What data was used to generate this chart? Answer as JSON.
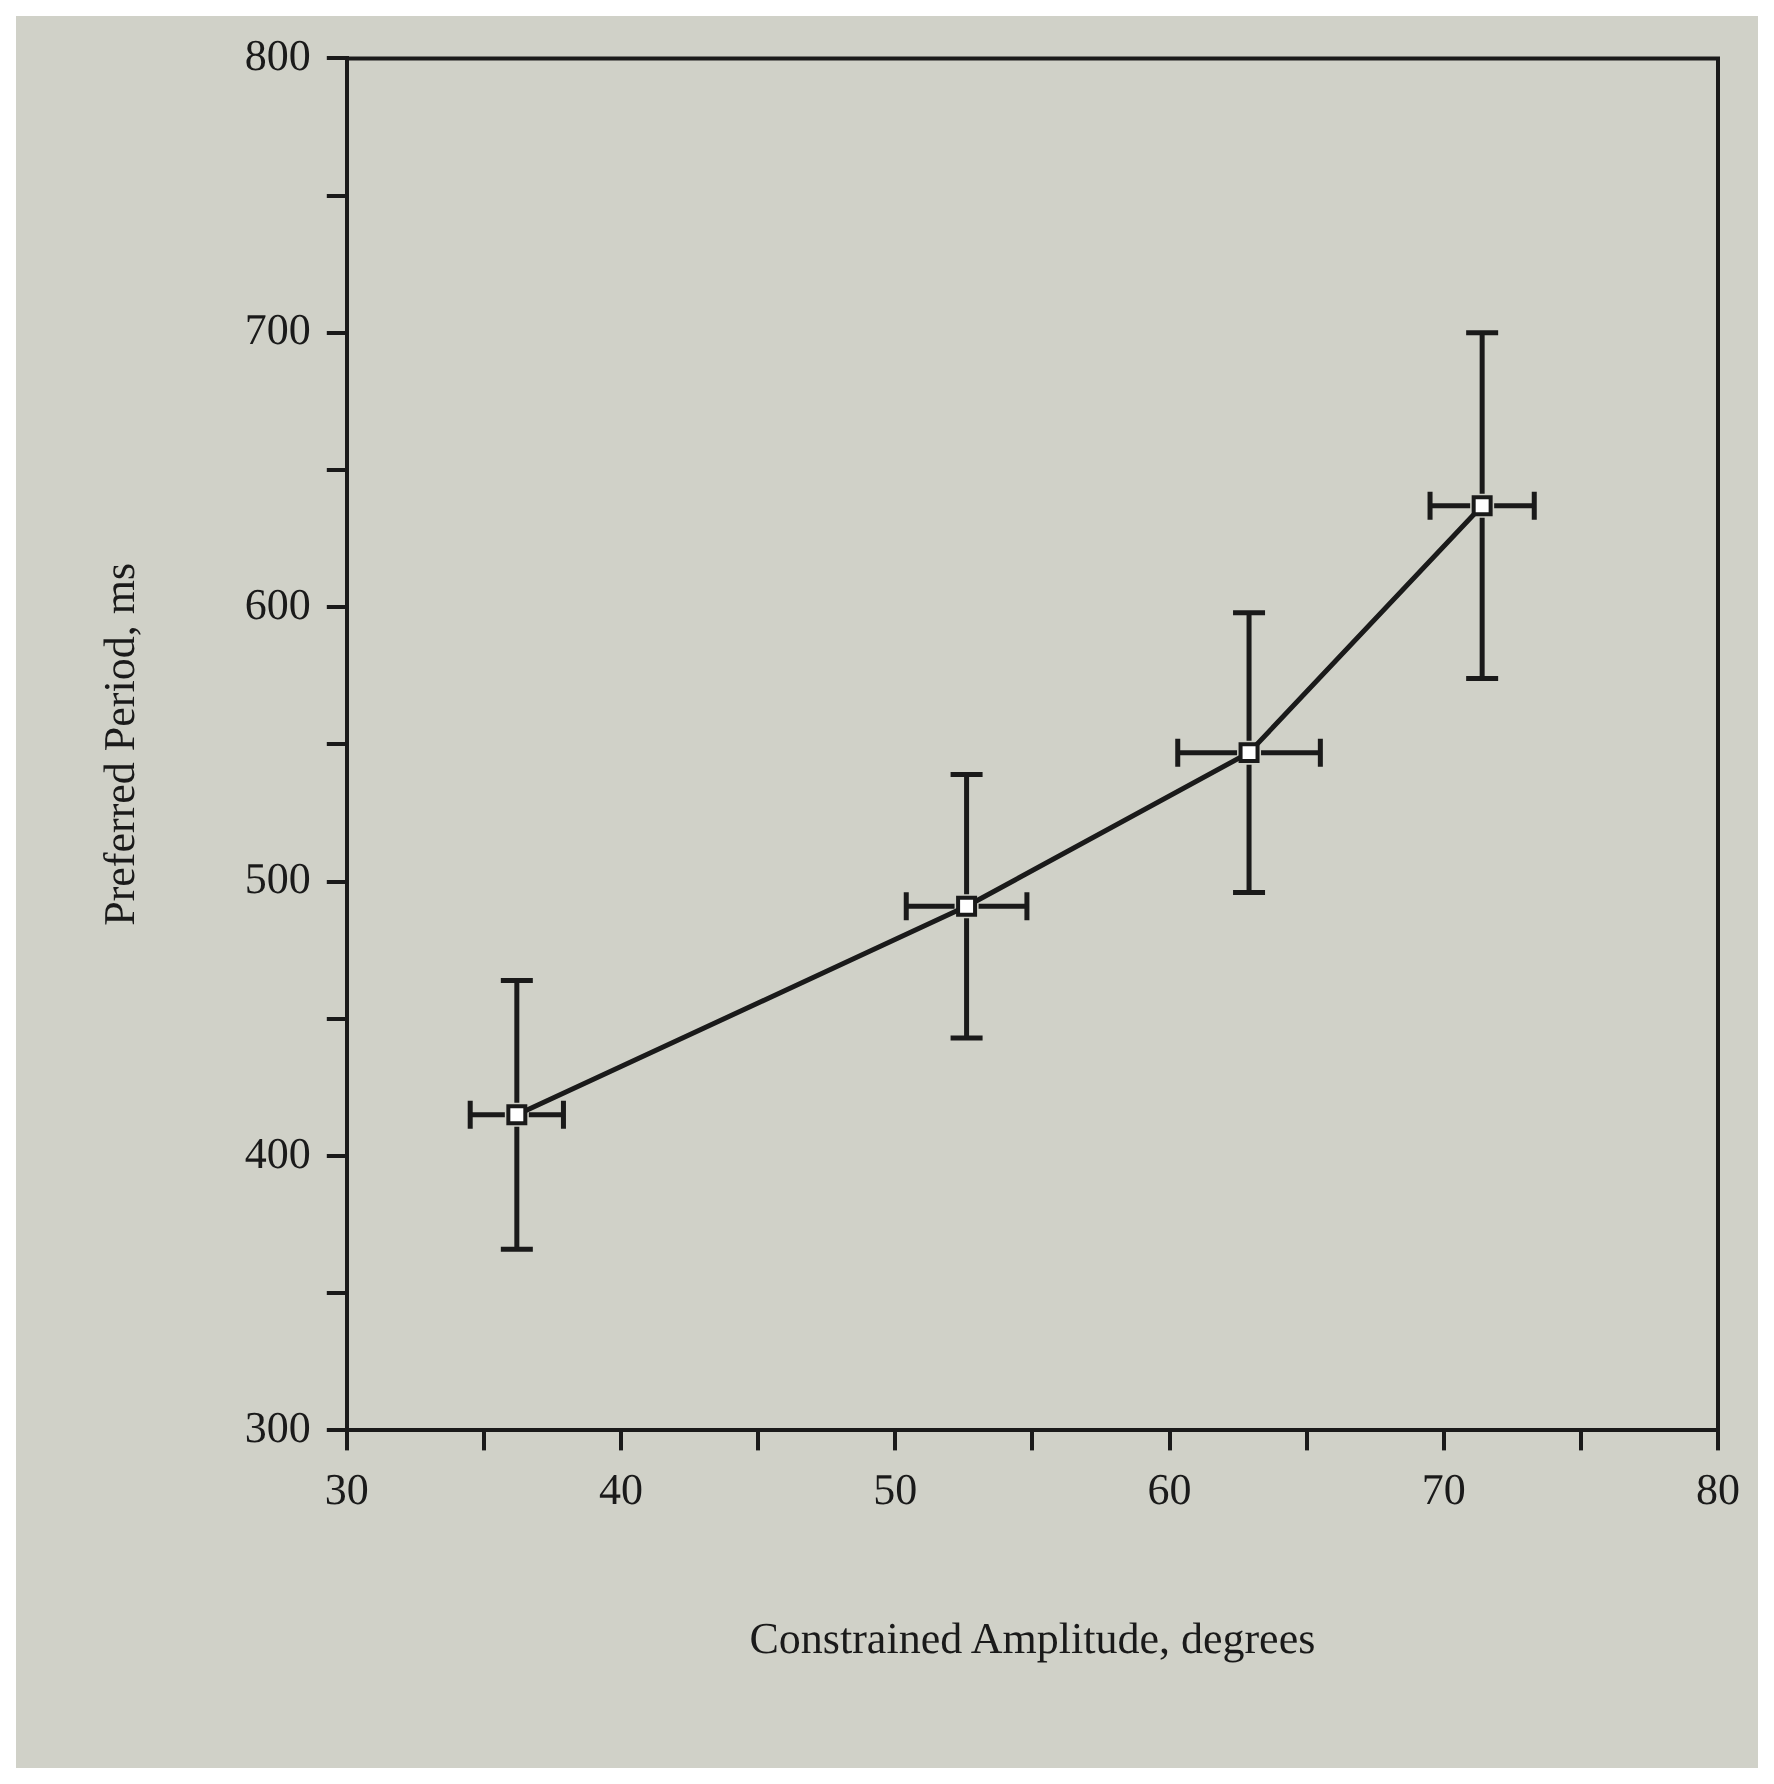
{
  "chart_data": {
    "type": "line",
    "xlabel": "Constrained Amplitude, degrees",
    "ylabel": "Preferred Period, ms",
    "x": [
      36.2,
      52.6,
      62.9,
      71.4
    ],
    "series": [
      {
        "color": "#1a1a1a",
        "values": [
          415,
          491,
          547,
          637
        ],
        "errors": [
          49,
          48,
          51,
          63
        ],
        "xerrors": [
          1.7,
          2.2,
          2.6,
          1.9
        ]
      }
    ],
    "xlim": [
      30,
      80
    ],
    "xticks": [
      30,
      {
        "value": 35,
        "label": null
      },
      40,
      {
        "value": 45,
        "label": null
      },
      50,
      {
        "value": 55,
        "label": null
      },
      60,
      {
        "value": 65,
        "label": null
      },
      70,
      {
        "value": 75,
        "label": null
      },
      80
    ],
    "ylim": [
      300,
      800
    ],
    "yticks": [
      300,
      {
        "value": 350,
        "label": null
      },
      400,
      {
        "value": 450,
        "label": null
      },
      500,
      {
        "value": 550,
        "label": null
      },
      600,
      {
        "value": 650,
        "label": null
      },
      700,
      {
        "value": 750,
        "label": null
      },
      800
    ],
    "grid": false,
    "legend": false,
    "marker": "square",
    "line_style": "solid"
  }
}
